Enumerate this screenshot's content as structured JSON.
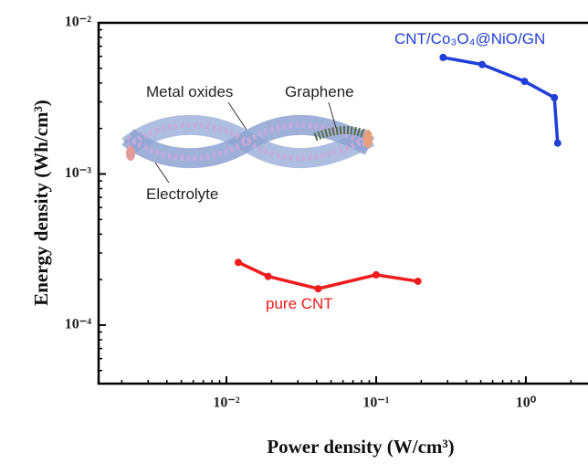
{
  "chart_data": {
    "type": "line",
    "x_label": "Power density (W/cm³)",
    "y_label": "Energy density (Wh/cm³)",
    "log_x": true,
    "log_y": true,
    "xlim": [
      0.0014,
      2.6
    ],
    "ylim": [
      4.1e-05,
      0.01
    ],
    "xticks": [
      {
        "value": 0.01,
        "label": "10⁻²"
      },
      {
        "value": 0.1,
        "label": "10⁻¹"
      },
      {
        "value": 1,
        "label": "10⁰"
      }
    ],
    "yticks": [
      {
        "value": 0.0001,
        "label": "10⁻⁴"
      },
      {
        "value": 0.001,
        "label": "10⁻³"
      },
      {
        "value": 0.01,
        "label": "10⁻²"
      }
    ],
    "series": [
      {
        "name": "CNT/Co₃O₄@NiO/GN",
        "color": "#1f3fd6",
        "x": [
          0.28,
          0.51,
          0.98,
          1.55,
          1.63
        ],
        "values": [
          0.0059,
          0.0053,
          0.0041,
          0.0032,
          0.0016
        ]
      },
      {
        "name": "pure CNT",
        "color": "#ee1c1c",
        "x": [
          0.012,
          0.019,
          0.041,
          0.1,
          0.19
        ],
        "values": [
          0.00026,
          0.00021,
          0.000174,
          0.000215,
          0.000195
        ]
      }
    ],
    "annotations": [
      "Metal oxides",
      "Graphene",
      "Electrolyte"
    ]
  }
}
